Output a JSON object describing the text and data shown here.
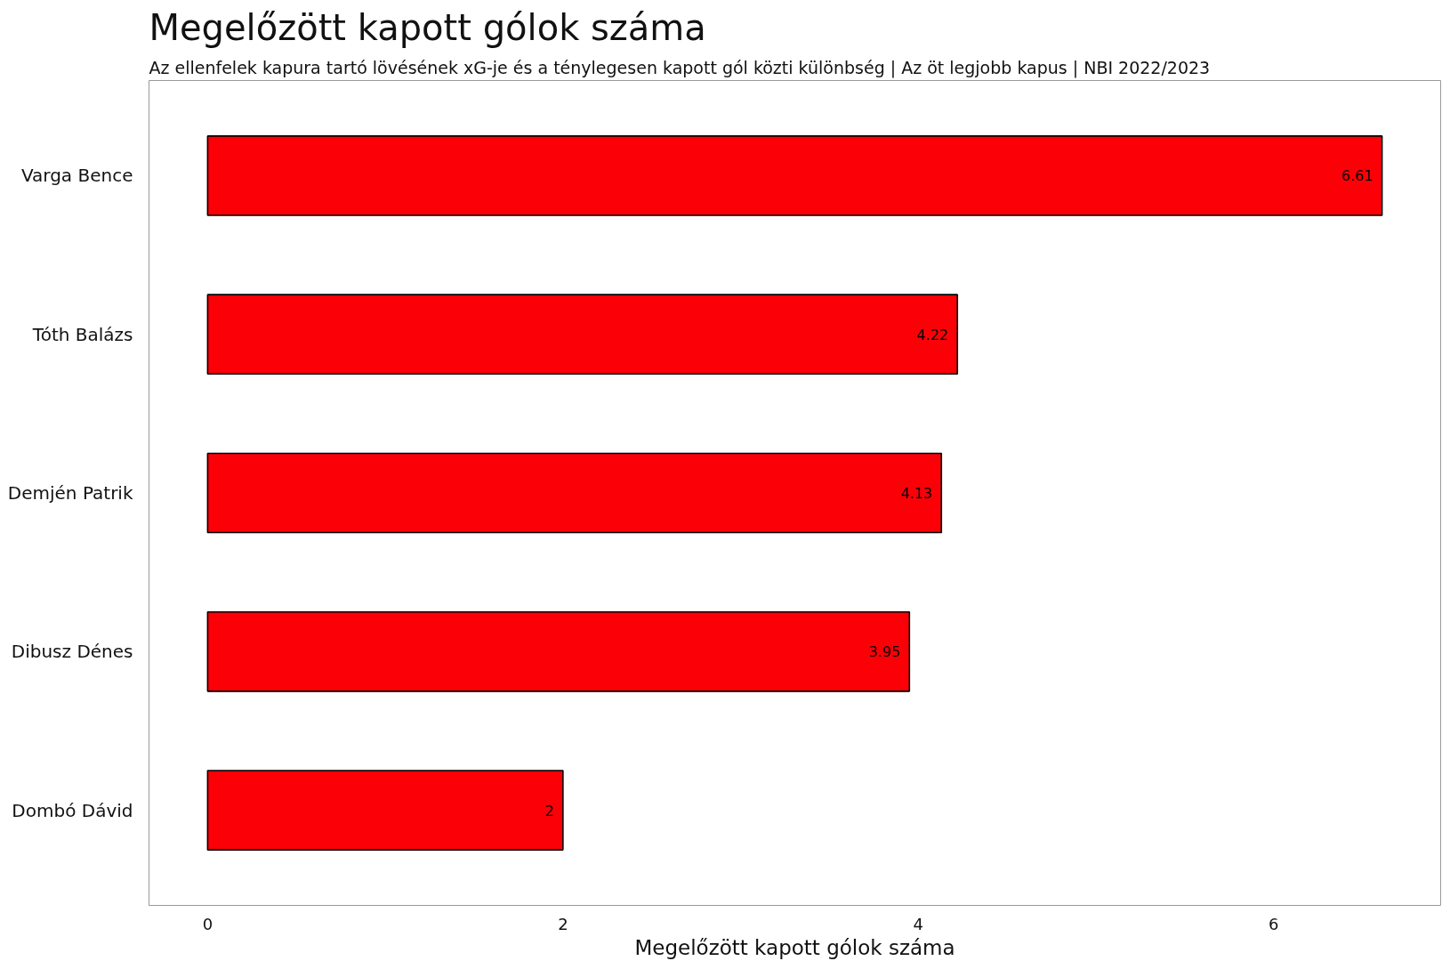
{
  "chart_data": {
    "type": "bar",
    "orientation": "horizontal",
    "title": "Megelőzött kapott gólok száma",
    "subtitle": "Az ellenfelek kapura tartó lövésének xG-je és a ténylegesen kapott gól közti különbség | Az öt legjobb kapus | NBI 2022/2023",
    "xlabel": "Megelőzött kapott gólok száma",
    "categories": [
      "Varga Bence",
      "Tóth Balázs",
      "Demjén Patrik",
      "Dibusz Dénes",
      "Dombó Dávid"
    ],
    "values": [
      6.61,
      4.22,
      4.13,
      3.95,
      2
    ],
    "color": "#fb0007",
    "xlim": [
      -0.33,
      6.94
    ],
    "xticks": [
      0,
      2,
      4,
      6
    ],
    "data_labels": true,
    "grid": false
  }
}
